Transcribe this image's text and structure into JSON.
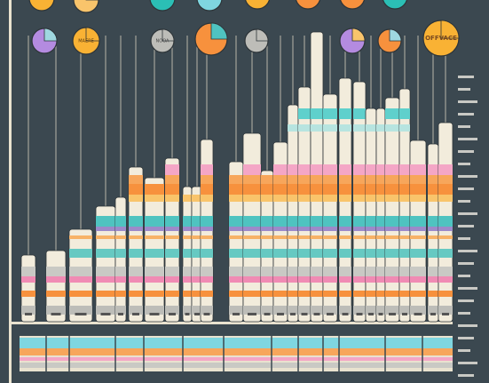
{
  "badges": {
    "large": "OFFVACE",
    "left": "MAERE",
    "middle": "NOOA"
  }
}
